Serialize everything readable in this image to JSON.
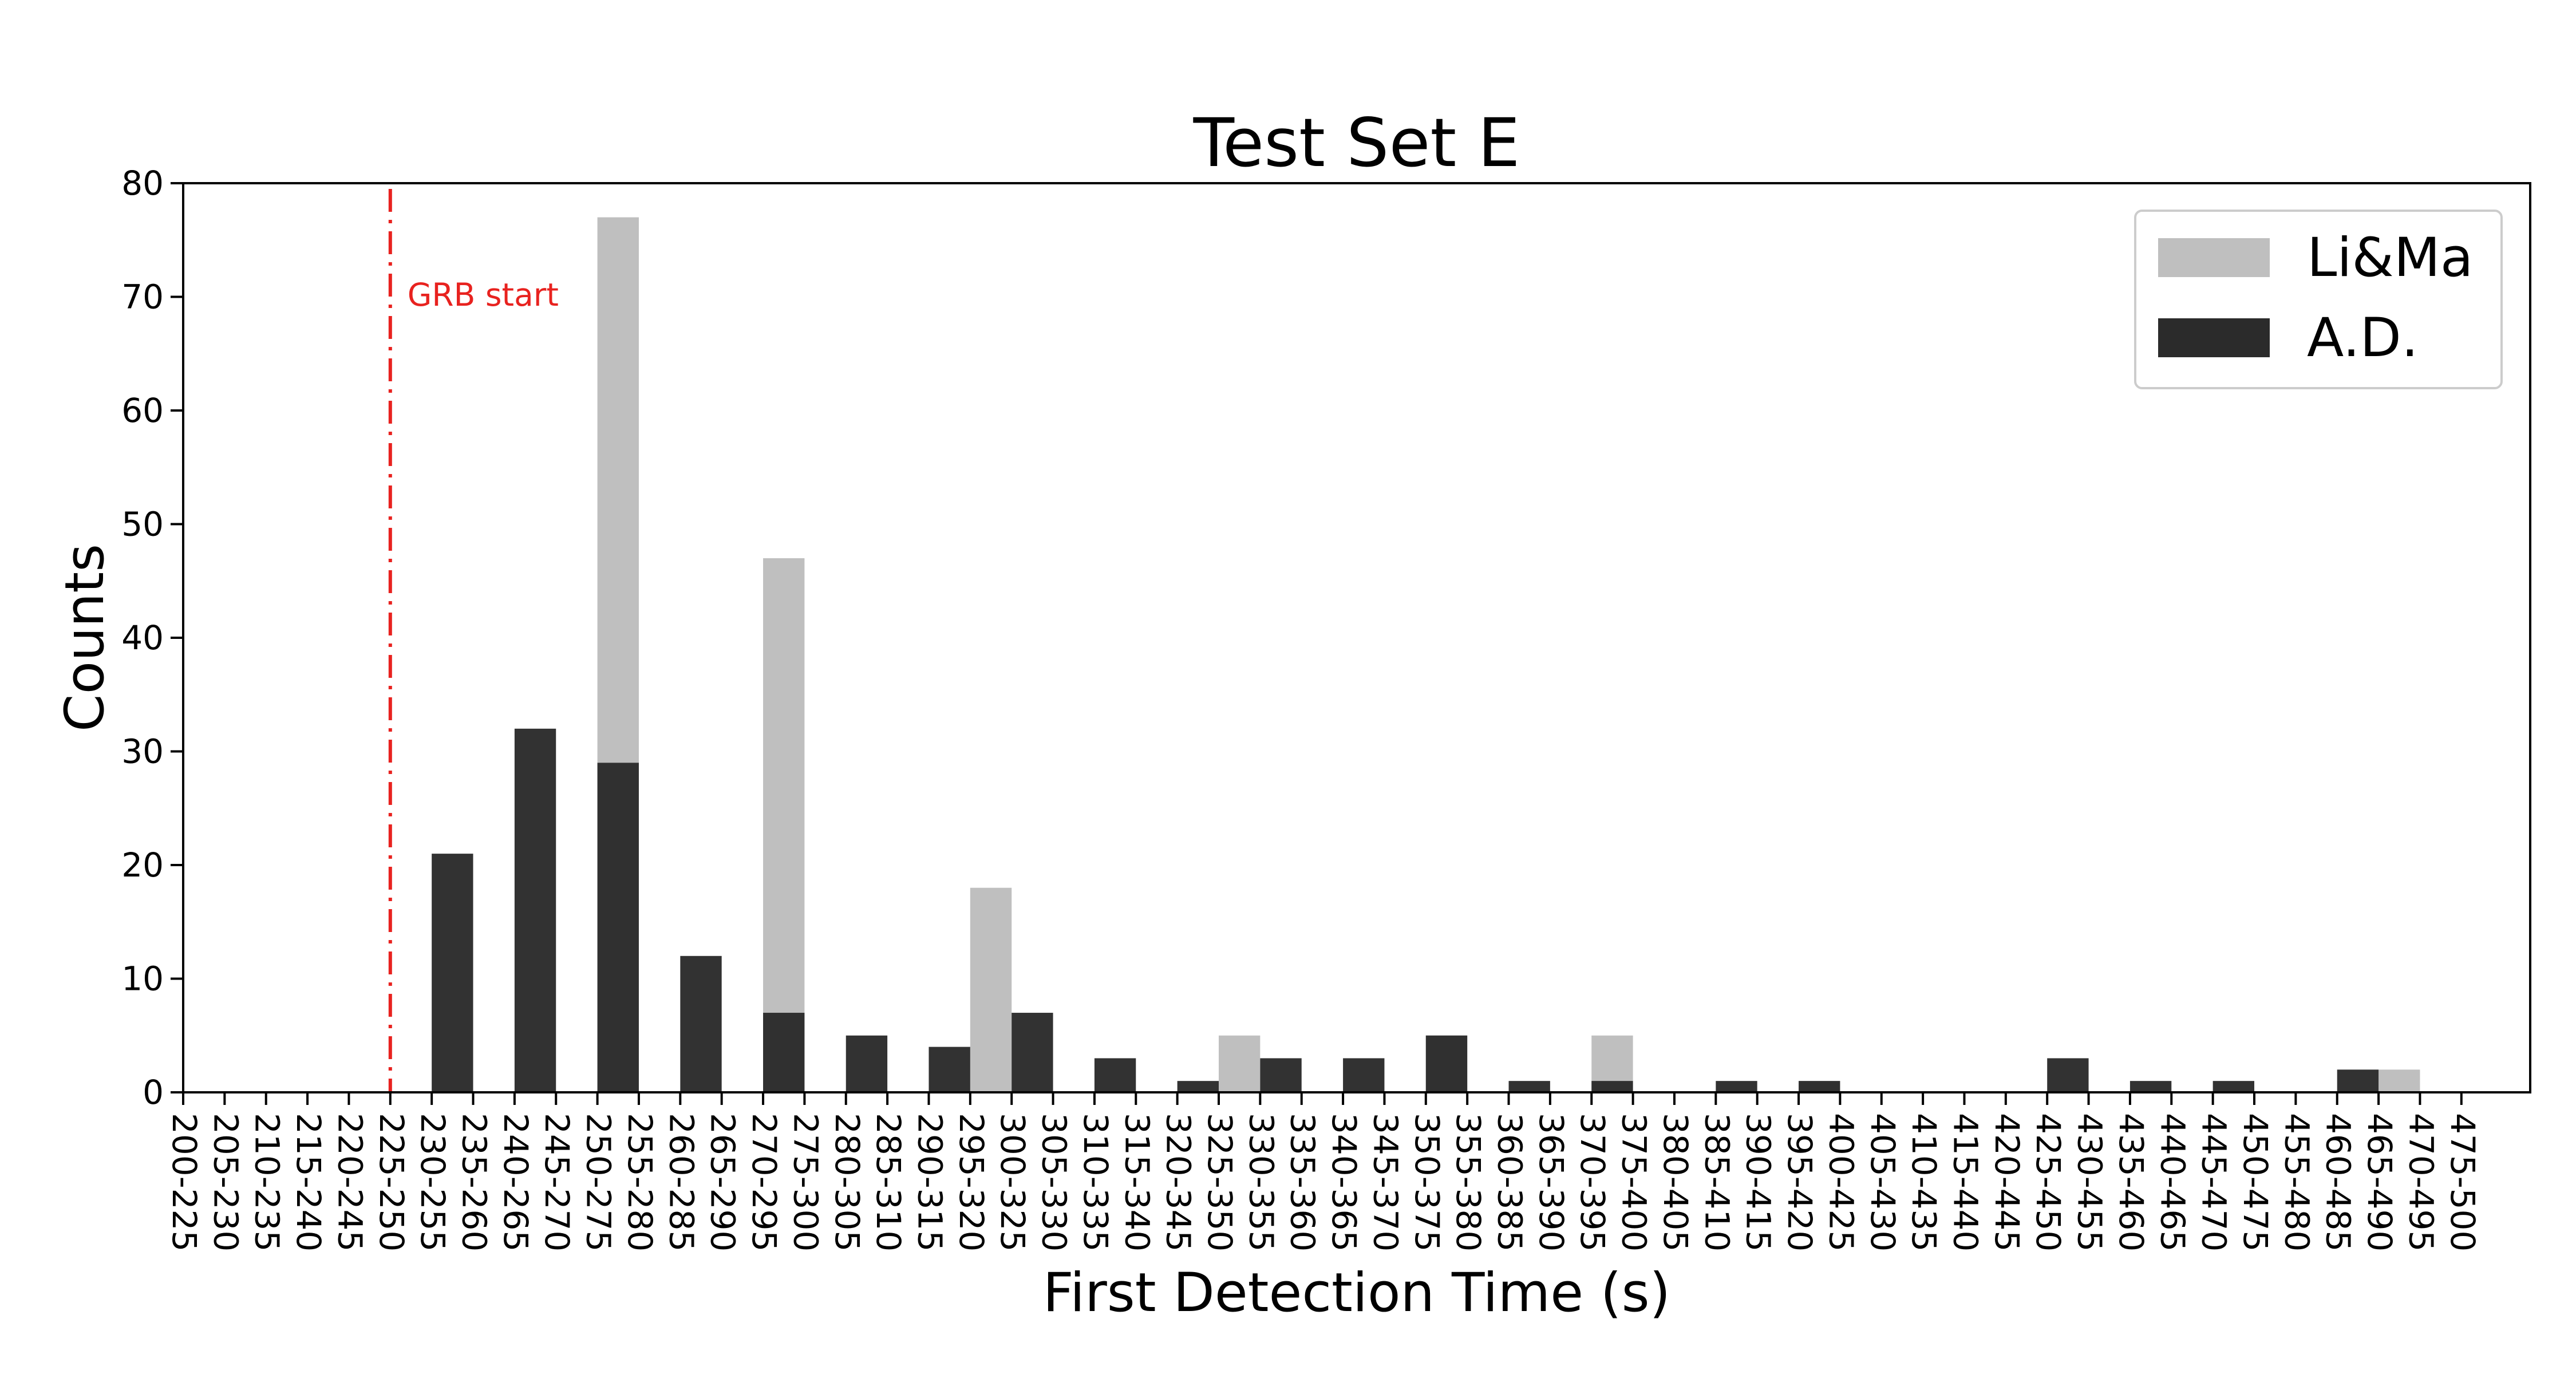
{
  "chart_data": {
    "type": "bar",
    "title": "Test Set E",
    "xlabel": "First Detection Time (s)",
    "ylabel": "Counts",
    "ylim": [
      0,
      80
    ],
    "yticks": [
      0,
      10,
      20,
      30,
      40,
      50,
      60,
      70,
      80
    ],
    "grid": false,
    "legend_position": "top-right",
    "categories": [
      "200-225",
      "205-230",
      "210-235",
      "215-240",
      "220-245",
      "225-250",
      "230-255",
      "235-260",
      "240-265",
      "245-270",
      "250-275",
      "255-280",
      "260-285",
      "265-290",
      "270-295",
      "275-300",
      "280-305",
      "285-310",
      "290-315",
      "295-320",
      "300-325",
      "305-330",
      "310-335",
      "315-340",
      "320-345",
      "325-350",
      "330-355",
      "335-360",
      "340-365",
      "345-370",
      "350-375",
      "355-380",
      "360-385",
      "365-390",
      "370-395",
      "375-400",
      "380-405",
      "385-410",
      "390-415",
      "395-420",
      "400-425",
      "405-430",
      "410-435",
      "415-440",
      "420-445",
      "425-450",
      "430-455",
      "435-460",
      "440-465",
      "445-470",
      "450-475",
      "455-480",
      "460-485",
      "465-490",
      "470-495",
      "475-500"
    ],
    "series": [
      {
        "name": "Li&Ma",
        "color": "#bfbfbf",
        "values": [
          0,
          0,
          0,
          0,
          0,
          0,
          0,
          0,
          0,
          0,
          77,
          0,
          0,
          0,
          47,
          0,
          0,
          0,
          0,
          18,
          0,
          0,
          0,
          0,
          0,
          5,
          0,
          0,
          0,
          0,
          5,
          0,
          0,
          0,
          5,
          0,
          0,
          0,
          0,
          1,
          0,
          0,
          0,
          0,
          0,
          0,
          0,
          0,
          0,
          0,
          0,
          0,
          0,
          2,
          0,
          0
        ]
      },
      {
        "name": "A.D.",
        "color": "#2b2b2b",
        "values": [
          0,
          0,
          0,
          0,
          0,
          0,
          21,
          0,
          32,
          0,
          29,
          0,
          12,
          0,
          7,
          0,
          5,
          0,
          4,
          0,
          7,
          0,
          3,
          0,
          1,
          0,
          3,
          0,
          3,
          0,
          5,
          0,
          1,
          0,
          1,
          0,
          0,
          1,
          0,
          1,
          0,
          0,
          0,
          0,
          0,
          3,
          0,
          1,
          0,
          1,
          0,
          0,
          2,
          0,
          0,
          0
        ]
      }
    ],
    "annotation": {
      "text": "GRB start",
      "color": "#e8221f",
      "x_category": "225-250"
    }
  }
}
